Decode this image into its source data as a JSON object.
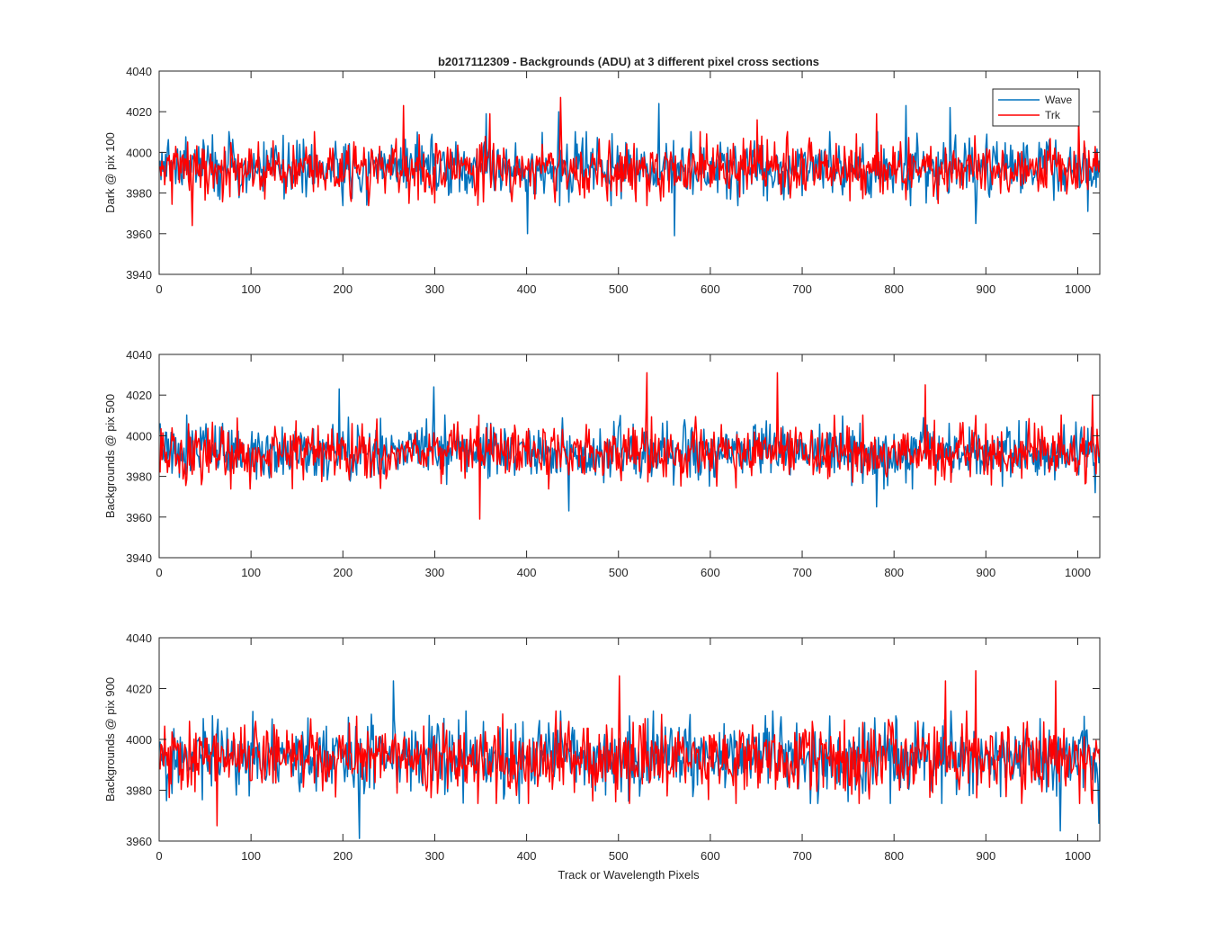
{
  "title": "b2017112309 - Backgrounds (ADU) at 3 different pixel cross sections",
  "xlabel": "Track or Wavelength Pixels",
  "colors": {
    "wave": "#0072BD",
    "trk": "#FF0000",
    "axis": "#262626"
  },
  "legend": {
    "position": "top-right",
    "entries": [
      "Wave",
      "Trk"
    ]
  },
  "chart_data": [
    {
      "type": "line",
      "ylabel": "Dark @ pix 100",
      "xlim": [
        0,
        1024
      ],
      "ylim": [
        3940,
        4040
      ],
      "xticks": [
        0,
        100,
        200,
        300,
        400,
        500,
        600,
        700,
        800,
        900,
        1000
      ],
      "yticks": [
        3940,
        3960,
        3980,
        4000,
        4020,
        4040
      ],
      "grid": false,
      "legend": "top-right",
      "noise_seed": 11,
      "series": [
        {
          "name": "Wave",
          "color": "#0072BD",
          "n_points": 1024,
          "mean": 3992,
          "std": 7,
          "peaks": [
            [
              355,
              4019
            ],
            [
              400,
              3960
            ],
            [
              434,
              4020
            ],
            [
              543,
              4024
            ],
            [
              560,
              3959
            ],
            [
              812,
              4023
            ],
            [
              860,
              4022
            ],
            [
              888,
              3965
            ],
            [
              1010,
              3971
            ]
          ]
        },
        {
          "name": "Trk",
          "color": "#FF0000",
          "n_points": 1024,
          "mean": 3992,
          "std": 7,
          "peaks": [
            [
              35,
              3964
            ],
            [
              265,
              4023
            ],
            [
              359,
              4019
            ],
            [
              436,
              4027
            ],
            [
              650,
              4016
            ],
            [
              780,
              4019
            ],
            [
              1000,
              4018
            ]
          ]
        }
      ]
    },
    {
      "type": "line",
      "ylabel": "Backgrounds @ pix 500",
      "xlim": [
        0,
        1024
      ],
      "ylim": [
        3940,
        4040
      ],
      "xticks": [
        0,
        100,
        200,
        300,
        400,
        500,
        600,
        700,
        800,
        900,
        1000
      ],
      "yticks": [
        3940,
        3960,
        3980,
        4000,
        4020,
        4040
      ],
      "grid": false,
      "noise_seed": 23,
      "series": [
        {
          "name": "Wave",
          "color": "#0072BD",
          "n_points": 1024,
          "mean": 3992,
          "std": 7,
          "peaks": [
            [
              195,
              4023
            ],
            [
              298,
              4024
            ],
            [
              445,
              3963
            ],
            [
              780,
              3965
            ],
            [
              1018,
              3972
            ]
          ]
        },
        {
          "name": "Trk",
          "color": "#FF0000",
          "n_points": 1024,
          "mean": 3992,
          "std": 7,
          "peaks": [
            [
              348,
              3959
            ],
            [
              530,
              4031
            ],
            [
              672,
              4031
            ],
            [
              833,
              4025
            ],
            [
              1015,
              4020
            ]
          ]
        }
      ]
    },
    {
      "type": "line",
      "ylabel": "Backgrounds @ pix 900",
      "xlim": [
        0,
        1024
      ],
      "ylim": [
        3960,
        4040
      ],
      "xticks": [
        0,
        100,
        200,
        300,
        400,
        500,
        600,
        700,
        800,
        900,
        1000
      ],
      "yticks": [
        3960,
        3980,
        4000,
        4020,
        4040
      ],
      "grid": false,
      "noise_seed": 37,
      "series": [
        {
          "name": "Wave",
          "color": "#0072BD",
          "n_points": 1024,
          "mean": 3993,
          "std": 7,
          "peaks": [
            [
              217,
              3961
            ],
            [
              254,
              4023
            ],
            [
              980,
              3964
            ],
            [
              1022,
              3967
            ]
          ]
        },
        {
          "name": "Trk",
          "color": "#FF0000",
          "n_points": 1024,
          "mean": 3993,
          "std": 7,
          "peaks": [
            [
              62,
              3966
            ],
            [
              500,
              4025
            ],
            [
              855,
              4023
            ],
            [
              888,
              4027
            ],
            [
              975,
              4023
            ]
          ]
        }
      ]
    }
  ]
}
